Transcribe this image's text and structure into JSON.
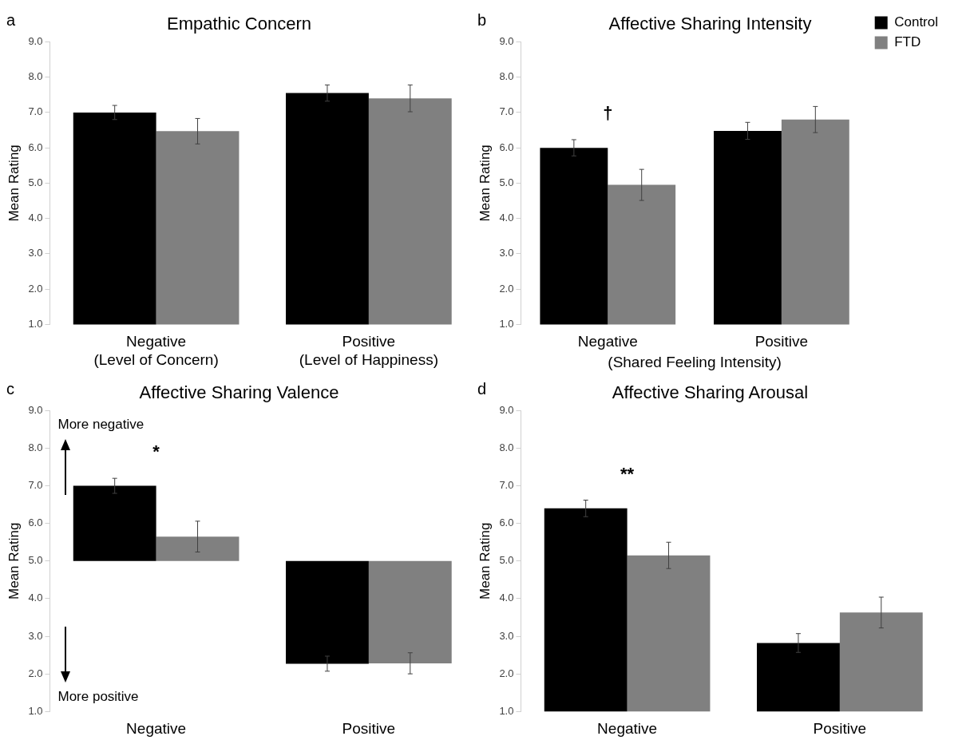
{
  "chart_data": [
    {
      "type": "bar",
      "title": "Empathic Concern",
      "ylabel": "Mean Rating",
      "categories": [
        "Negative\n(Level of Concern)",
        "Positive\n(Level of Happiness)"
      ],
      "series": [
        {
          "color": "#000000",
          "values": [
            7.0,
            7.55
          ],
          "errors": [
            0.2,
            0.23
          ]
        },
        {
          "color": "#808080",
          "values": [
            6.47,
            7.4
          ],
          "errors": [
            0.36,
            0.38
          ]
        }
      ],
      "ylim": [
        1,
        9
      ],
      "yticks": [
        {
          "value": 1,
          "label": "1.0"
        },
        {
          "value": 2,
          "label": "2.0"
        },
        {
          "value": 3,
          "label": "3.0"
        },
        {
          "value": 4,
          "label": "4.0"
        },
        {
          "value": 5,
          "label": "5.0"
        },
        {
          "value": 6,
          "label": "6.0"
        },
        {
          "value": 7,
          "label": "7.0"
        },
        {
          "value": 8,
          "label": "8.0"
        },
        {
          "value": 9,
          "label": "9.0"
        }
      ],
      "grid": false,
      "legend": false,
      "annotations": [
        "a"
      ]
    },
    {
      "type": "bar",
      "title": "Affective Sharing Intensity",
      "ylabel": "Mean Rating",
      "xlabel": "(Shared Feeling Intensity)",
      "categories": [
        "Negative",
        "Positive"
      ],
      "series": [
        {
          "name": "Control",
          "color": "#000000",
          "values": [
            6.0,
            6.48
          ],
          "errors": [
            0.23,
            0.24
          ]
        },
        {
          "name": "FTD",
          "color": "#808080",
          "values": [
            4.95,
            6.8
          ],
          "errors": [
            0.44,
            0.37
          ]
        }
      ],
      "ylim": [
        1,
        9
      ],
      "yticks": [
        {
          "value": 1,
          "label": "1.0"
        },
        {
          "value": 2,
          "label": "2.0"
        },
        {
          "value": 3,
          "label": "3.0"
        },
        {
          "value": 4,
          "label": "4.0"
        },
        {
          "value": 5,
          "label": "5.0"
        },
        {
          "value": 6,
          "label": "6.0"
        },
        {
          "value": 7,
          "label": "7.0"
        },
        {
          "value": 8,
          "label": "8.0"
        },
        {
          "value": 9,
          "label": "9.0"
        }
      ],
      "grid": false,
      "legend": "top right",
      "annotations": [
        "b",
        "†"
      ]
    },
    {
      "type": "bar",
      "title": "Affective Sharing Valence",
      "ylabel": "Mean Rating",
      "categories": [
        "Negative",
        "Positive"
      ],
      "series": [
        {
          "color": "#000000",
          "base": [
            5,
            5
          ],
          "values": [
            2.0,
            -2.73
          ],
          "errors": [
            0.2,
            0.2
          ]
        },
        {
          "color": "#808080",
          "base": [
            5,
            5
          ],
          "values": [
            0.65,
            -2.72
          ],
          "errors": [
            0.41,
            0.28
          ]
        }
      ],
      "ylim": [
        1,
        9
      ],
      "yticks": [
        {
          "value": 1,
          "label": "1.0"
        },
        {
          "value": 2,
          "label": "2.0"
        },
        {
          "value": 3,
          "label": "3.0"
        },
        {
          "value": 4,
          "label": "4.0"
        },
        {
          "value": 5,
          "label": "5.0"
        },
        {
          "value": 6,
          "label": "6.0"
        },
        {
          "value": 7,
          "label": "7.0"
        },
        {
          "value": 8,
          "label": "8.0"
        },
        {
          "value": 9,
          "label": "9.0"
        }
      ],
      "grid": false,
      "legend": false,
      "annotations": [
        "c",
        "*",
        "More negative",
        "More positive"
      ]
    },
    {
      "type": "bar",
      "title": "Affective Sharing Arousal",
      "ylabel": "Mean Rating",
      "categories": [
        "Negative",
        "Positive"
      ],
      "series": [
        {
          "color": "#000000",
          "values": [
            6.4,
            2.82
          ],
          "errors": [
            0.22,
            0.25
          ]
        },
        {
          "color": "#808080",
          "values": [
            5.15,
            3.63
          ],
          "errors": [
            0.35,
            0.41
          ]
        }
      ],
      "ylim": [
        1,
        9
      ],
      "yticks": [
        {
          "value": 1,
          "label": "1.0"
        },
        {
          "value": 2,
          "label": "2.0"
        },
        {
          "value": 3,
          "label": "3.0"
        },
        {
          "value": 4,
          "label": "4.0"
        },
        {
          "value": 5,
          "label": "5.0"
        },
        {
          "value": 6,
          "label": "6.0"
        },
        {
          "value": 7,
          "label": "7.0"
        },
        {
          "value": 8,
          "label": "8.0"
        },
        {
          "value": 9,
          "label": "9.0"
        }
      ],
      "grid": false,
      "legend": false,
      "annotations": [
        "d",
        "**"
      ]
    }
  ]
}
